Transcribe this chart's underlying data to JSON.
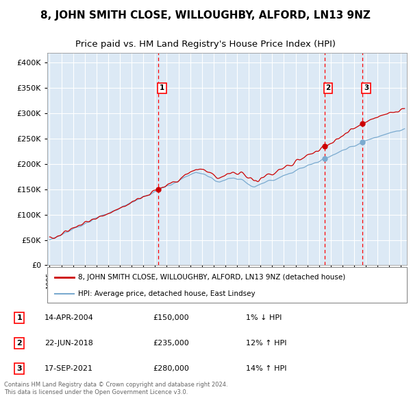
{
  "title": "8, JOHN SMITH CLOSE, WILLOUGHBY, ALFORD, LN13 9NZ",
  "subtitle": "Price paid vs. HM Land Registry's House Price Index (HPI)",
  "background_color": "#dce9f5",
  "plot_bg_color": "#dce9f5",
  "grid_color": "#ffffff",
  "red_line_color": "#cc0000",
  "blue_line_color": "#7aaacf",
  "marker_color_red": "#cc0000",
  "marker_color_blue": "#7aaacf",
  "sale_prices": [
    150000,
    235000,
    280000
  ],
  "sale_labels": [
    "1",
    "2",
    "3"
  ],
  "sale_info": [
    {
      "num": "1",
      "date": "14-APR-2004",
      "price": "£150,000",
      "pct": "1%",
      "dir": "↓ HPI"
    },
    {
      "num": "2",
      "date": "22-JUN-2018",
      "price": "£235,000",
      "pct": "12%",
      "dir": "↑ HPI"
    },
    {
      "num": "3",
      "date": "17-SEP-2021",
      "price": "£280,000",
      "pct": "14%",
      "dir": "↑ HPI"
    }
  ],
  "legend_entry1": "8, JOHN SMITH CLOSE, WILLOUGHBY, ALFORD, LN13 9NZ (detached house)",
  "legend_entry2": "HPI: Average price, detached house, East Lindsey",
  "footer": "Contains HM Land Registry data © Crown copyright and database right 2024.\nThis data is licensed under the Open Government Licence v3.0.",
  "ylim": [
    0,
    420000
  ],
  "yticks": [
    0,
    50000,
    100000,
    150000,
    200000,
    250000,
    300000,
    350000,
    400000
  ],
  "xstart": 1994.8,
  "xend": 2025.5,
  "title_fontsize": 11,
  "subtitle_fontsize": 9.5,
  "axis_fontsize": 8
}
